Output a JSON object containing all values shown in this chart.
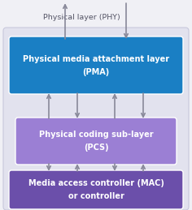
{
  "bg_color": "#f0f0f5",
  "outer_rect_color": "#e2e2ee",
  "outer_rect_edge": "#c8c8dc",
  "pma_color": "#1a7fc4",
  "pma_text_line1": "Physical media attachment layer",
  "pma_text_line2": "(PMA)",
  "pcs_color": "#9b7fd4",
  "pcs_text_line1": "Physical coding sub-layer",
  "pcs_text_line2": "(PCS)",
  "mac_color": "#6b4faa",
  "mac_text_line1": "Media access controller (MAC)",
  "mac_text_line2": "or controller",
  "phy_label": "Physical layer (PHY)",
  "arrow_color": "#888899",
  "text_color_dark": "#555566",
  "text_color_white": "#ffffff",
  "font_size_box": 7.0,
  "font_size_label": 6.8
}
